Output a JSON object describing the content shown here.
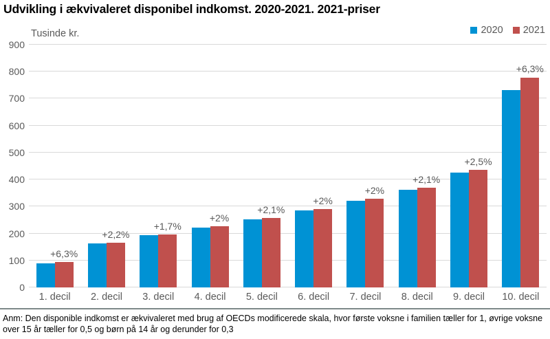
{
  "title": "Udvikling i ækvivaleret disponibel indkomst. 2020-2021. 2021-priser",
  "footnote": "Anm: Den disponible indkomst er ækvivaleret med brug af OECDs modificerede skala, hvor første voksne i familien tæller for 1, øvrige voksne over 15 år tæller for 0,5 og børn på 14 år og derunder for 0,3",
  "colors": {
    "series_2020": "#0092d4",
    "series_2021": "#c0504d",
    "gridline": "#d9d9d9",
    "axis_text": "#595959",
    "footnote_rule": "#7d8888",
    "background": "#ffffff"
  },
  "chart_data": {
    "type": "bar",
    "title": "Udvikling i ækvivaleret disponibel indkomst. 2020-2021. 2021-priser",
    "ylabel": "Tusinde kr.",
    "xlabel": "",
    "ylim": [
      0,
      900
    ],
    "ytick_step": 100,
    "grid": true,
    "legend_position": "top-right",
    "categories": [
      "1. decil",
      "2. decil",
      "3. decil",
      "4. decil",
      "5. decil",
      "6. decil",
      "7. decil",
      "8. decil",
      "9. decil",
      "10. decil"
    ],
    "series": [
      {
        "name": "2020",
        "color": "#0092d4",
        "values": [
          89,
          163,
          193,
          222,
          253,
          285,
          321,
          362,
          426,
          733
        ]
      },
      {
        "name": "2021",
        "color": "#c0504d",
        "values": [
          95,
          167,
          196,
          227,
          258,
          291,
          328,
          370,
          437,
          779
        ]
      }
    ],
    "bar_labels": [
      "+6,3%",
      "+2,2%",
      "+1,7%",
      "+2%",
      "+2,1%",
      "+2%",
      "+2%",
      "+2,1%",
      "+2,5%",
      "+6,3%"
    ]
  }
}
